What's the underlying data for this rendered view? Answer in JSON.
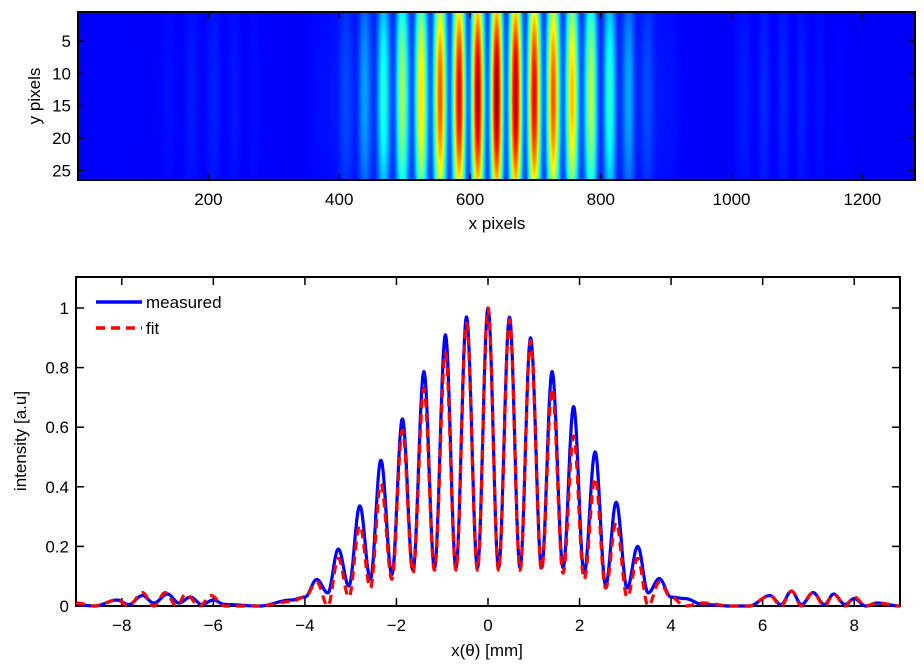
{
  "chart_data": [
    {
      "type": "heatmap",
      "xlabel": "x pixels",
      "ylabel": "y pixels",
      "xlim": [
        0.5,
        1280.5
      ],
      "ylim": [
        0.5,
        26.5
      ],
      "y_reversed": true,
      "xticks": [
        200,
        400,
        600,
        800,
        1000,
        1200
      ],
      "yticks": [
        5,
        10,
        15,
        20,
        25
      ],
      "colormap": "jet",
      "description_of_values": "interference fringe pattern, brightest near x pixels 600-680, rows 10-17"
    },
    {
      "type": "line",
      "xlabel": "x(θ) [mm]",
      "ylabel": "intensity [a.u]",
      "xlim": [
        -9,
        9
      ],
      "ylim": [
        0,
        1.1
      ],
      "xticks": [
        -8,
        -6,
        -4,
        -2,
        0,
        2,
        4,
        6,
        8
      ],
      "yticks": [
        0,
        0.2,
        0.4,
        0.6,
        0.8,
        1
      ],
      "legend": "top-left",
      "grid": false,
      "series": [
        {
          "name": "measured",
          "color": "#0000ff",
          "style": "solid",
          "x": [
            -9.0,
            -8.6,
            -8.1,
            -7.85,
            -7.55,
            -7.3,
            -7.0,
            -6.75,
            -6.5,
            -6.25,
            -6.0,
            -5.75,
            -5.0,
            -4.3,
            -4.0,
            -3.74,
            -3.5,
            -3.27,
            -3.04,
            -2.8,
            -2.57,
            -2.34,
            -2.1,
            -1.87,
            -1.64,
            -1.4,
            -1.17,
            -0.93,
            -0.7,
            -0.47,
            -0.23,
            0,
            0.23,
            0.47,
            0.7,
            0.93,
            1.17,
            1.4,
            1.64,
            1.87,
            2.1,
            2.34,
            2.57,
            2.8,
            3.04,
            3.27,
            3.5,
            3.74,
            4.0,
            4.3,
            4.7,
            5.3,
            5.7,
            6.16,
            6.4,
            6.63,
            6.85,
            7.1,
            7.35,
            7.55,
            7.8,
            8.0,
            8.25,
            8.5,
            9.0
          ],
          "y": [
            0.005,
            0.0,
            0.02,
            0.005,
            0.035,
            0.01,
            0.04,
            0.01,
            0.03,
            0.005,
            0.02,
            0.005,
            0.0,
            0.02,
            0.03,
            0.089,
            0.044,
            0.191,
            0.067,
            0.336,
            0.09,
            0.489,
            0.105,
            0.628,
            0.12,
            0.787,
            0.128,
            0.91,
            0.128,
            0.97,
            0.128,
            1.0,
            0.128,
            0.969,
            0.128,
            0.9,
            0.128,
            0.787,
            0.128,
            0.669,
            0.11,
            0.517,
            0.07,
            0.348,
            0.06,
            0.2,
            0.044,
            0.092,
            0.03,
            0.025,
            0.005,
            0.0,
            0.0,
            0.035,
            0.005,
            0.05,
            0.005,
            0.045,
            0.005,
            0.04,
            0.005,
            0.025,
            0.0,
            0.01,
            0.0
          ]
        },
        {
          "name": "fit",
          "color": "#ff0000",
          "style": "dashed",
          "x": [
            -9.0,
            -8.6,
            -8.1,
            -7.85,
            -7.55,
            -7.3,
            -7.05,
            -6.8,
            -6.6,
            -6.3,
            -6.05,
            -5.75,
            -5.0,
            -4.3,
            -4.0,
            -3.74,
            -3.5,
            -3.27,
            -3.04,
            -2.8,
            -2.57,
            -2.34,
            -2.1,
            -1.87,
            -1.64,
            -1.4,
            -1.17,
            -0.93,
            -0.7,
            -0.47,
            -0.23,
            0,
            0.23,
            0.47,
            0.7,
            0.93,
            1.17,
            1.4,
            1.64,
            1.87,
            2.1,
            2.34,
            2.57,
            2.8,
            3.04,
            3.27,
            3.5,
            3.74,
            4.0,
            4.3,
            4.7,
            5.3,
            5.7,
            6.16,
            6.4,
            6.63,
            6.85,
            7.1,
            7.35,
            7.55,
            7.8,
            8.0,
            8.25,
            8.5,
            9.0
          ],
          "y": [
            0.01,
            0.0,
            0.02,
            0.0,
            0.045,
            0.0,
            0.045,
            0.0,
            0.04,
            0.0,
            0.035,
            0.0,
            0.0,
            0.015,
            0.03,
            0.08,
            0.0,
            0.16,
            0.03,
            0.27,
            0.06,
            0.41,
            0.09,
            0.59,
            0.11,
            0.73,
            0.12,
            0.85,
            0.12,
            0.95,
            0.12,
            1.0,
            0.12,
            0.96,
            0.12,
            0.89,
            0.12,
            0.73,
            0.11,
            0.57,
            0.09,
            0.43,
            0.06,
            0.28,
            0.03,
            0.16,
            0.0,
            0.08,
            0.03,
            0.0,
            0.01,
            0.0,
            0.0,
            0.035,
            0.0,
            0.05,
            0.0,
            0.045,
            0.0,
            0.04,
            0.0,
            0.03,
            0.0,
            0.01,
            0.0
          ]
        }
      ]
    }
  ]
}
